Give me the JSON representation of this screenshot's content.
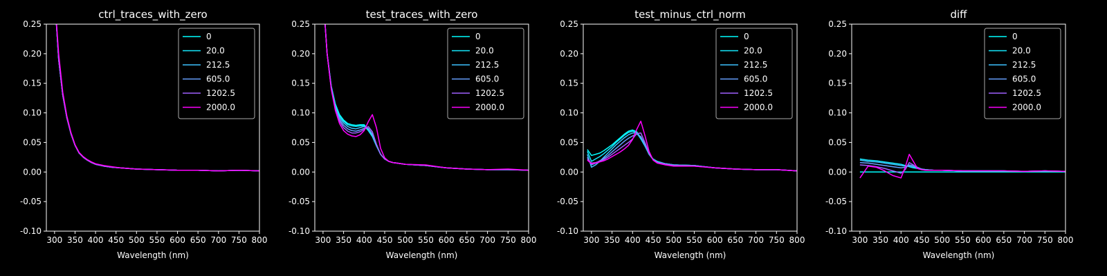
{
  "chart_data": [
    {
      "type": "line",
      "title": "ctrl_traces_with_zero",
      "xlabel": "Wavelength (nm)",
      "ylabel": "",
      "xlim": [
        280,
        800
      ],
      "ylim": [
        -0.1,
        0.25
      ],
      "xticks": [
        300,
        350,
        400,
        450,
        500,
        550,
        600,
        650,
        700,
        750,
        800
      ],
      "yticks": [
        -0.1,
        -0.05,
        0.0,
        0.05,
        0.1,
        0.15,
        0.2,
        0.25
      ],
      "legend_position": "top-right",
      "x": [
        300,
        310,
        320,
        330,
        340,
        350,
        360,
        370,
        380,
        390,
        400,
        420,
        440,
        460,
        480,
        500,
        550,
        600,
        650,
        700,
        750,
        800
      ],
      "series": [
        {
          "name": "0",
          "color": "#00ffff",
          "values": [
            0.3,
            0.19,
            0.13,
            0.092,
            0.065,
            0.045,
            0.032,
            0.025,
            0.02,
            0.016,
            0.013,
            0.01,
            0.008,
            0.007,
            0.006,
            0.005,
            0.004,
            0.003,
            0.003,
            0.002,
            0.003,
            0.002
          ]
        },
        {
          "name": "20.0",
          "color": "#14ebff",
          "values": [
            0.3,
            0.19,
            0.13,
            0.092,
            0.065,
            0.045,
            0.032,
            0.025,
            0.02,
            0.016,
            0.013,
            0.01,
            0.008,
            0.007,
            0.006,
            0.005,
            0.004,
            0.003,
            0.003,
            0.002,
            0.003,
            0.002
          ]
        },
        {
          "name": "212.5",
          "color": "#3dc2ff",
          "values": [
            0.3,
            0.19,
            0.13,
            0.092,
            0.065,
            0.045,
            0.032,
            0.025,
            0.02,
            0.016,
            0.013,
            0.01,
            0.008,
            0.007,
            0.006,
            0.005,
            0.004,
            0.003,
            0.003,
            0.002,
            0.003,
            0.002
          ]
        },
        {
          "name": "605.0",
          "color": "#66a0ff",
          "values": [
            0.3,
            0.19,
            0.13,
            0.092,
            0.065,
            0.045,
            0.032,
            0.025,
            0.02,
            0.016,
            0.013,
            0.01,
            0.008,
            0.007,
            0.006,
            0.005,
            0.004,
            0.003,
            0.003,
            0.002,
            0.003,
            0.002
          ]
        },
        {
          "name": "1202.5",
          "color": "#a060ff",
          "values": [
            0.3,
            0.19,
            0.13,
            0.092,
            0.065,
            0.045,
            0.032,
            0.025,
            0.02,
            0.016,
            0.013,
            0.01,
            0.008,
            0.007,
            0.006,
            0.005,
            0.004,
            0.003,
            0.003,
            0.002,
            0.003,
            0.002
          ]
        },
        {
          "name": "2000.0",
          "color": "#ff00ff",
          "values": [
            0.3,
            0.2,
            0.135,
            0.095,
            0.067,
            0.046,
            0.033,
            0.026,
            0.021,
            0.017,
            0.014,
            0.011,
            0.009,
            0.007,
            0.006,
            0.005,
            0.004,
            0.003,
            0.003,
            0.002,
            0.003,
            0.002
          ]
        }
      ]
    },
    {
      "type": "line",
      "title": "test_traces_with_zero",
      "xlabel": "Wavelength (nm)",
      "ylabel": "",
      "xlim": [
        280,
        800
      ],
      "ylim": [
        -0.1,
        0.25
      ],
      "xticks": [
        300,
        350,
        400,
        450,
        500,
        550,
        600,
        650,
        700,
        750,
        800
      ],
      "yticks": [
        -0.1,
        -0.05,
        0.0,
        0.05,
        0.1,
        0.15,
        0.2,
        0.25
      ],
      "legend_position": "top-right",
      "x": [
        300,
        310,
        320,
        330,
        340,
        350,
        360,
        370,
        380,
        390,
        400,
        410,
        420,
        430,
        440,
        450,
        460,
        470,
        480,
        500,
        550,
        600,
        650,
        700,
        750,
        800
      ],
      "series": [
        {
          "name": "0",
          "color": "#00ffff",
          "values": [
            0.3,
            0.2,
            0.145,
            0.115,
            0.097,
            0.088,
            0.082,
            0.08,
            0.079,
            0.08,
            0.08,
            0.072,
            0.062,
            0.045,
            0.03,
            0.022,
            0.018,
            0.016,
            0.015,
            0.013,
            0.011,
            0.007,
            0.005,
            0.004,
            0.004,
            0.003
          ]
        },
        {
          "name": "20.0",
          "color": "#14ebff",
          "values": [
            0.3,
            0.2,
            0.145,
            0.113,
            0.095,
            0.086,
            0.08,
            0.078,
            0.077,
            0.078,
            0.078,
            0.07,
            0.06,
            0.044,
            0.03,
            0.022,
            0.018,
            0.016,
            0.015,
            0.013,
            0.011,
            0.007,
            0.005,
            0.004,
            0.004,
            0.003
          ]
        },
        {
          "name": "212.5",
          "color": "#3dc2ff",
          "values": [
            0.3,
            0.2,
            0.143,
            0.11,
            0.092,
            0.083,
            0.077,
            0.074,
            0.073,
            0.075,
            0.077,
            0.073,
            0.062,
            0.045,
            0.03,
            0.022,
            0.018,
            0.016,
            0.015,
            0.013,
            0.011,
            0.007,
            0.005,
            0.004,
            0.004,
            0.003
          ]
        },
        {
          "name": "605.0",
          "color": "#66a0ff",
          "values": [
            0.3,
            0.2,
            0.142,
            0.108,
            0.089,
            0.079,
            0.073,
            0.07,
            0.069,
            0.071,
            0.074,
            0.074,
            0.064,
            0.046,
            0.03,
            0.022,
            0.018,
            0.016,
            0.015,
            0.013,
            0.011,
            0.007,
            0.005,
            0.004,
            0.004,
            0.003
          ]
        },
        {
          "name": "1202.5",
          "color": "#a060ff",
          "values": [
            0.3,
            0.2,
            0.141,
            0.106,
            0.086,
            0.075,
            0.069,
            0.066,
            0.066,
            0.068,
            0.072,
            0.077,
            0.068,
            0.047,
            0.03,
            0.022,
            0.018,
            0.016,
            0.015,
            0.013,
            0.011,
            0.007,
            0.005,
            0.004,
            0.004,
            0.003
          ]
        },
        {
          "name": "2000.0",
          "color": "#ff00ff",
          "values": [
            0.3,
            0.2,
            0.14,
            0.104,
            0.082,
            0.07,
            0.064,
            0.061,
            0.06,
            0.063,
            0.07,
            0.085,
            0.097,
            0.075,
            0.04,
            0.024,
            0.018,
            0.016,
            0.015,
            0.013,
            0.012,
            0.007,
            0.005,
            0.004,
            0.005,
            0.003
          ]
        }
      ]
    },
    {
      "type": "line",
      "title": "test_minus_ctrl_norm",
      "xlabel": "Wavelength (nm)",
      "ylabel": "",
      "xlim": [
        280,
        800
      ],
      "ylim": [
        -0.1,
        0.25
      ],
      "xticks": [
        300,
        350,
        400,
        450,
        500,
        550,
        600,
        650,
        700,
        750,
        800
      ],
      "yticks": [
        -0.1,
        -0.05,
        0.0,
        0.05,
        0.1,
        0.15,
        0.2,
        0.25
      ],
      "legend_position": "top-right",
      "x": [
        290,
        300,
        310,
        320,
        330,
        340,
        350,
        360,
        370,
        380,
        390,
        400,
        410,
        420,
        430,
        440,
        450,
        460,
        480,
        500,
        550,
        600,
        650,
        700,
        750,
        800
      ],
      "series": [
        {
          "name": "0",
          "color": "#00ffff",
          "values": [
            0.038,
            0.028,
            0.03,
            0.032,
            0.036,
            0.041,
            0.046,
            0.052,
            0.058,
            0.064,
            0.069,
            0.071,
            0.068,
            0.058,
            0.045,
            0.03,
            0.022,
            0.018,
            0.014,
            0.012,
            0.011,
            0.007,
            0.005,
            0.004,
            0.004,
            0.002
          ]
        },
        {
          "name": "20.0",
          "color": "#14ebff",
          "values": [
            0.035,
            0.018,
            0.022,
            0.026,
            0.031,
            0.037,
            0.043,
            0.05,
            0.056,
            0.062,
            0.067,
            0.069,
            0.066,
            0.056,
            0.044,
            0.03,
            0.021,
            0.017,
            0.014,
            0.012,
            0.011,
            0.007,
            0.005,
            0.004,
            0.004,
            0.002
          ]
        },
        {
          "name": "212.5",
          "color": "#3dc2ff",
          "values": [
            0.03,
            0.008,
            0.012,
            0.018,
            0.025,
            0.032,
            0.039,
            0.046,
            0.052,
            0.058,
            0.063,
            0.066,
            0.066,
            0.058,
            0.045,
            0.03,
            0.021,
            0.017,
            0.014,
            0.012,
            0.011,
            0.007,
            0.005,
            0.004,
            0.004,
            0.002
          ]
        },
        {
          "name": "605.0",
          "color": "#66a0ff",
          "values": [
            0.025,
            0.012,
            0.015,
            0.019,
            0.023,
            0.028,
            0.034,
            0.04,
            0.046,
            0.052,
            0.057,
            0.061,
            0.064,
            0.06,
            0.047,
            0.031,
            0.021,
            0.017,
            0.014,
            0.012,
            0.011,
            0.007,
            0.005,
            0.004,
            0.004,
            0.002
          ]
        },
        {
          "name": "1202.5",
          "color": "#a060ff",
          "values": [
            0.022,
            0.015,
            0.016,
            0.018,
            0.021,
            0.025,
            0.03,
            0.035,
            0.04,
            0.045,
            0.05,
            0.056,
            0.065,
            0.066,
            0.05,
            0.032,
            0.021,
            0.016,
            0.013,
            0.011,
            0.01,
            0.007,
            0.005,
            0.004,
            0.004,
            0.002
          ]
        },
        {
          "name": "2000.0",
          "color": "#ff00ff",
          "values": [
            0.02,
            0.014,
            0.015,
            0.017,
            0.019,
            0.022,
            0.026,
            0.03,
            0.034,
            0.039,
            0.045,
            0.055,
            0.072,
            0.086,
            0.062,
            0.035,
            0.02,
            0.015,
            0.012,
            0.01,
            0.01,
            0.007,
            0.005,
            0.004,
            0.004,
            0.002
          ]
        }
      ]
    },
    {
      "type": "line",
      "title": "diff",
      "xlabel": "Wavelength (nm)",
      "ylabel": "",
      "xlim": [
        280,
        800
      ],
      "ylim": [
        -0.1,
        0.25
      ],
      "xticks": [
        300,
        350,
        400,
        450,
        500,
        550,
        600,
        650,
        700,
        750,
        800
      ],
      "yticks": [
        -0.1,
        -0.05,
        0.0,
        0.05,
        0.1,
        0.15,
        0.2,
        0.25
      ],
      "legend_position": "top-right",
      "x": [
        300,
        320,
        340,
        360,
        380,
        400,
        410,
        420,
        430,
        440,
        450,
        460,
        480,
        500,
        550,
        600,
        650,
        700,
        750,
        800
      ],
      "series": [
        {
          "name": "0",
          "color": "#00ffff",
          "values": [
            0.0,
            0.0,
            0.0,
            0.0,
            0.0,
            0.0,
            0.0,
            0.0,
            0.0,
            0.0,
            0.0,
            0.0,
            0.0,
            0.0,
            0.0,
            0.0,
            0.0,
            0.0,
            0.0,
            0.0
          ]
        },
        {
          "name": "20.0",
          "color": "#14ebff",
          "values": [
            0.022,
            0.02,
            0.019,
            0.017,
            0.015,
            0.013,
            0.011,
            0.009,
            0.007,
            0.006,
            0.005,
            0.004,
            0.003,
            0.003,
            0.002,
            0.002,
            0.002,
            0.001,
            0.002,
            0.001
          ]
        },
        {
          "name": "212.5",
          "color": "#3dc2ff",
          "values": [
            0.02,
            0.018,
            0.017,
            0.015,
            0.013,
            0.011,
            0.01,
            0.01,
            0.009,
            0.007,
            0.005,
            0.004,
            0.003,
            0.003,
            0.002,
            0.002,
            0.002,
            0.001,
            0.002,
            0.001
          ]
        },
        {
          "name": "605.0",
          "color": "#66a0ff",
          "values": [
            0.016,
            0.015,
            0.013,
            0.011,
            0.009,
            0.007,
            0.008,
            0.012,
            0.011,
            0.008,
            0.005,
            0.004,
            0.003,
            0.003,
            0.002,
            0.002,
            0.002,
            0.001,
            0.002,
            0.001
          ]
        },
        {
          "name": "1202.5",
          "color": "#a060ff",
          "values": [
            0.012,
            0.011,
            0.009,
            0.006,
            0.002,
            -0.002,
            0.004,
            0.016,
            0.012,
            0.006,
            0.004,
            0.003,
            0.003,
            0.003,
            0.002,
            0.002,
            0.002,
            0.001,
            0.002,
            0.001
          ]
        },
        {
          "name": "2000.0",
          "color": "#ff00ff",
          "values": [
            -0.01,
            0.01,
            0.008,
            0.002,
            -0.006,
            -0.01,
            0.008,
            0.03,
            0.018,
            0.006,
            0.004,
            0.003,
            0.003,
            0.003,
            0.002,
            0.002,
            0.002,
            0.001,
            0.002,
            0.001
          ]
        }
      ]
    }
  ]
}
